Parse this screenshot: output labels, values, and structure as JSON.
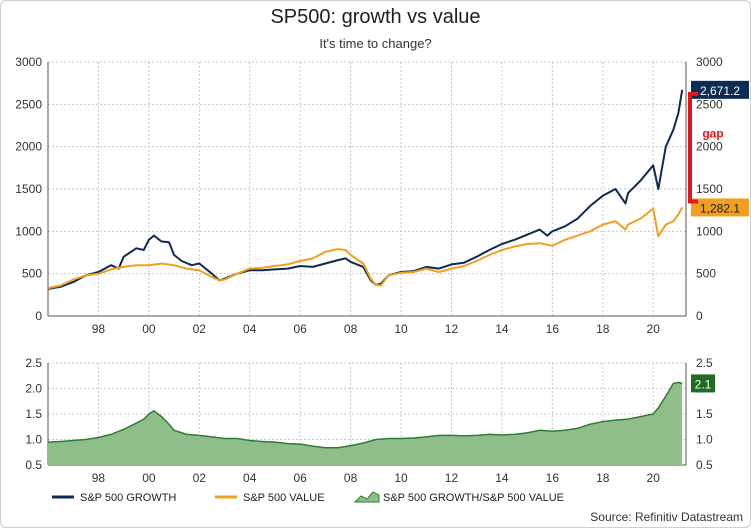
{
  "title": "SP500: growth vs value",
  "subtitle": "It's time to change?",
  "source": "Source: Refinitiv Datastream",
  "colors": {
    "growth": "#0d2c54",
    "value": "#f0a020",
    "ratio_fill": "#8fbe8b",
    "ratio_line": "#2e7d32",
    "gap": "#e8141c",
    "grid": "#c8c8c8"
  },
  "chart_data": [
    {
      "type": "line",
      "title": "SP500: growth vs value",
      "subtitle": "It's time to change?",
      "x_tick_labels": [
        "98",
        "00",
        "02",
        "04",
        "06",
        "08",
        "10",
        "12",
        "14",
        "16",
        "18",
        "20"
      ],
      "xlim": [
        1996,
        2021.3
      ],
      "ylim": [
        0,
        3000
      ],
      "y_ticks": [
        0,
        500,
        1000,
        1500,
        2000,
        2500,
        3000
      ],
      "right_axis_ticks": [
        0,
        500,
        1000,
        1500,
        2000,
        2500,
        3000
      ],
      "grid": true,
      "series": [
        {
          "name": "S&P 500 GROWTH",
          "color": "#0d2c54",
          "last_label": "2,671.2",
          "points": [
            [
              1996.0,
              320
            ],
            [
              1996.5,
              345
            ],
            [
              1997.0,
              400
            ],
            [
              1997.5,
              480
            ],
            [
              1998.0,
              520
            ],
            [
              1998.5,
              600
            ],
            [
              1998.8,
              560
            ],
            [
              1999.0,
              700
            ],
            [
              1999.5,
              800
            ],
            [
              1999.8,
              780
            ],
            [
              2000.0,
              900
            ],
            [
              2000.2,
              950
            ],
            [
              2000.5,
              880
            ],
            [
              2000.8,
              870
            ],
            [
              2001.0,
              720
            ],
            [
              2001.3,
              650
            ],
            [
              2001.7,
              600
            ],
            [
              2002.0,
              620
            ],
            [
              2002.5,
              500
            ],
            [
              2002.8,
              420
            ],
            [
              2003.0,
              440
            ],
            [
              2003.5,
              500
            ],
            [
              2004.0,
              540
            ],
            [
              2004.5,
              540
            ],
            [
              2005.0,
              550
            ],
            [
              2005.5,
              560
            ],
            [
              2006.0,
              590
            ],
            [
              2006.5,
              580
            ],
            [
              2007.0,
              620
            ],
            [
              2007.5,
              660
            ],
            [
              2007.8,
              680
            ],
            [
              2008.0,
              640
            ],
            [
              2008.5,
              580
            ],
            [
              2008.8,
              420
            ],
            [
              2009.0,
              370
            ],
            [
              2009.2,
              380
            ],
            [
              2009.5,
              480
            ],
            [
              2010.0,
              520
            ],
            [
              2010.5,
              530
            ],
            [
              2011.0,
              580
            ],
            [
              2011.5,
              560
            ],
            [
              2012.0,
              610
            ],
            [
              2012.5,
              630
            ],
            [
              2013.0,
              700
            ],
            [
              2013.5,
              780
            ],
            [
              2014.0,
              850
            ],
            [
              2014.5,
              900
            ],
            [
              2015.0,
              960
            ],
            [
              2015.5,
              1020
            ],
            [
              2015.8,
              950
            ],
            [
              2016.0,
              1000
            ],
            [
              2016.5,
              1060
            ],
            [
              2017.0,
              1150
            ],
            [
              2017.5,
              1300
            ],
            [
              2018.0,
              1420
            ],
            [
              2018.5,
              1500
            ],
            [
              2018.9,
              1330
            ],
            [
              2019.0,
              1450
            ],
            [
              2019.5,
              1600
            ],
            [
              2020.0,
              1780
            ],
            [
              2020.2,
              1500
            ],
            [
              2020.5,
              2000
            ],
            [
              2020.8,
              2200
            ],
            [
              2021.0,
              2400
            ],
            [
              2021.15,
              2671.2
            ]
          ]
        },
        {
          "name": "S&P 500 VALUE",
          "color": "#f0a020",
          "last_label": "1,282.1",
          "points": [
            [
              1996.0,
              330
            ],
            [
              1996.5,
              360
            ],
            [
              1997.0,
              430
            ],
            [
              1997.5,
              480
            ],
            [
              1998.0,
              500
            ],
            [
              1998.5,
              550
            ],
            [
              1999.0,
              580
            ],
            [
              1999.5,
              600
            ],
            [
              2000.0,
              600
            ],
            [
              2000.5,
              620
            ],
            [
              2001.0,
              600
            ],
            [
              2001.5,
              560
            ],
            [
              2002.0,
              540
            ],
            [
              2002.5,
              460
            ],
            [
              2002.8,
              420
            ],
            [
              2003.0,
              430
            ],
            [
              2003.5,
              500
            ],
            [
              2004.0,
              560
            ],
            [
              2004.5,
              570
            ],
            [
              2005.0,
              590
            ],
            [
              2005.5,
              610
            ],
            [
              2006.0,
              650
            ],
            [
              2006.5,
              680
            ],
            [
              2007.0,
              760
            ],
            [
              2007.5,
              790
            ],
            [
              2007.8,
              780
            ],
            [
              2008.0,
              720
            ],
            [
              2008.5,
              620
            ],
            [
              2008.8,
              440
            ],
            [
              2009.0,
              370
            ],
            [
              2009.2,
              360
            ],
            [
              2009.5,
              480
            ],
            [
              2010.0,
              510
            ],
            [
              2010.5,
              520
            ],
            [
              2011.0,
              560
            ],
            [
              2011.5,
              520
            ],
            [
              2012.0,
              560
            ],
            [
              2012.5,
              590
            ],
            [
              2013.0,
              650
            ],
            [
              2013.5,
              720
            ],
            [
              2014.0,
              780
            ],
            [
              2014.5,
              820
            ],
            [
              2015.0,
              850
            ],
            [
              2015.5,
              860
            ],
            [
              2016.0,
              830
            ],
            [
              2016.5,
              900
            ],
            [
              2017.0,
              950
            ],
            [
              2017.5,
              1000
            ],
            [
              2018.0,
              1080
            ],
            [
              2018.5,
              1120
            ],
            [
              2018.9,
              1020
            ],
            [
              2019.0,
              1080
            ],
            [
              2019.5,
              1150
            ],
            [
              2020.0,
              1270
            ],
            [
              2020.2,
              940
            ],
            [
              2020.5,
              1080
            ],
            [
              2020.8,
              1120
            ],
            [
              2021.0,
              1200
            ],
            [
              2021.15,
              1282.1
            ]
          ]
        }
      ],
      "annotation": {
        "text": "gap",
        "from": 1282.1,
        "to": 2671.2
      }
    },
    {
      "type": "area",
      "x_tick_labels": [
        "98",
        "00",
        "02",
        "04",
        "06",
        "08",
        "10",
        "12",
        "14",
        "16",
        "18",
        "20"
      ],
      "xlim": [
        1996,
        2021.3
      ],
      "ylim": [
        0.5,
        2.5
      ],
      "y_ticks": [
        0.5,
        1.0,
        1.5,
        2.0,
        2.5
      ],
      "y_tick_labels": [
        "0.5",
        "1.0",
        "1.5",
        "2.0",
        "2.5"
      ],
      "right_axis_ticks": [
        "0.5",
        "1.0",
        "1.5",
        "2.0",
        "2.5"
      ],
      "grid": true,
      "series": [
        {
          "name": "S&P 500 GROWTH/S&P 500 VALUE",
          "last_label": "2.1",
          "points": [
            [
              1996.0,
              0.95
            ],
            [
              1996.5,
              0.96
            ],
            [
              1997.0,
              0.98
            ],
            [
              1997.5,
              1.0
            ],
            [
              1998.0,
              1.04
            ],
            [
              1998.5,
              1.1
            ],
            [
              1999.0,
              1.2
            ],
            [
              1999.5,
              1.32
            ],
            [
              1999.8,
              1.4
            ],
            [
              2000.0,
              1.5
            ],
            [
              2000.2,
              1.56
            ],
            [
              2000.5,
              1.45
            ],
            [
              2000.8,
              1.3
            ],
            [
              2001.0,
              1.18
            ],
            [
              2001.5,
              1.1
            ],
            [
              2002.0,
              1.08
            ],
            [
              2002.5,
              1.05
            ],
            [
              2003.0,
              1.02
            ],
            [
              2003.5,
              1.02
            ],
            [
              2004.0,
              0.98
            ],
            [
              2004.5,
              0.96
            ],
            [
              2005.0,
              0.95
            ],
            [
              2005.5,
              0.92
            ],
            [
              2006.0,
              0.91
            ],
            [
              2006.5,
              0.87
            ],
            [
              2007.0,
              0.84
            ],
            [
              2007.5,
              0.84
            ],
            [
              2008.0,
              0.88
            ],
            [
              2008.5,
              0.93
            ],
            [
              2009.0,
              1.0
            ],
            [
              2009.5,
              1.02
            ],
            [
              2010.0,
              1.02
            ],
            [
              2010.5,
              1.03
            ],
            [
              2011.0,
              1.05
            ],
            [
              2011.5,
              1.08
            ],
            [
              2012.0,
              1.08
            ],
            [
              2012.5,
              1.07
            ],
            [
              2013.0,
              1.08
            ],
            [
              2013.5,
              1.1
            ],
            [
              2014.0,
              1.09
            ],
            [
              2014.5,
              1.1
            ],
            [
              2015.0,
              1.13
            ],
            [
              2015.5,
              1.18
            ],
            [
              2016.0,
              1.16
            ],
            [
              2016.5,
              1.18
            ],
            [
              2017.0,
              1.22
            ],
            [
              2017.5,
              1.3
            ],
            [
              2018.0,
              1.35
            ],
            [
              2018.5,
              1.38
            ],
            [
              2019.0,
              1.4
            ],
            [
              2019.5,
              1.45
            ],
            [
              2020.0,
              1.5
            ],
            [
              2020.2,
              1.62
            ],
            [
              2020.5,
              1.85
            ],
            [
              2020.8,
              2.1
            ],
            [
              2021.0,
              2.12
            ],
            [
              2021.15,
              2.1
            ]
          ]
        }
      ]
    }
  ],
  "legend": [
    {
      "label": "S&P 500 GROWTH",
      "kind": "line",
      "color": "#0d2c54"
    },
    {
      "label": "S&P 500 VALUE",
      "kind": "line",
      "color": "#f0a020"
    },
    {
      "label": "S&P 500 GROWTH/S&P 500 VALUE",
      "kind": "area",
      "color": "#8fbe8b"
    }
  ]
}
